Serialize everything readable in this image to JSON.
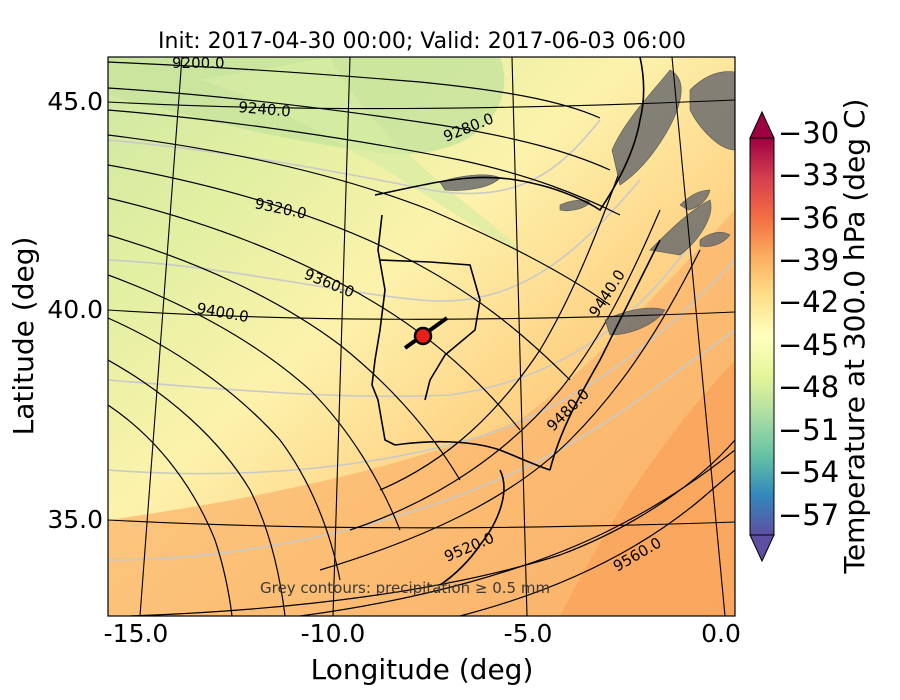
{
  "title": "Init: 2017-04-30 00:00; Valid: 2017-06-03 06:00",
  "x_axis": {
    "label": "Longitude (deg)",
    "ticks": [
      "-15.0",
      "-10.0",
      "-5.0",
      "0.0"
    ]
  },
  "y_axis": {
    "label": "Latitude (deg)",
    "ticks": [
      "45.0",
      "40.0",
      "35.0"
    ]
  },
  "colorbar": {
    "label": "Temperature at 300.0 hPa (deg C)",
    "ticks": [
      "−30",
      "−33",
      "−36",
      "−39",
      "−42",
      "−45",
      "−48",
      "−51",
      "−54",
      "−57"
    ],
    "range": [
      -58.5,
      -28.5
    ],
    "colormap": "Spectral",
    "extend": "both"
  },
  "contour_labels": [
    "9200.0",
    "9240.0",
    "9280.0",
    "9320.0",
    "9360.0",
    "9400.0",
    "9440.0",
    "9480.0",
    "9520.0",
    "9560.0"
  ],
  "note": "Grey contours: precipitation ≥ 0.5 mm",
  "marker": {
    "lon": -7.6,
    "lat": 39.4,
    "color": "#e8201c"
  },
  "colors": {
    "warm": "#f9a862",
    "cold": "#c9e4a0",
    "coastline": "#000000",
    "precip": "#6e6e6e"
  },
  "map_extent": {
    "lon": [
      -16.0,
      0.0
    ],
    "lat": [
      32.8,
      46.0
    ]
  }
}
